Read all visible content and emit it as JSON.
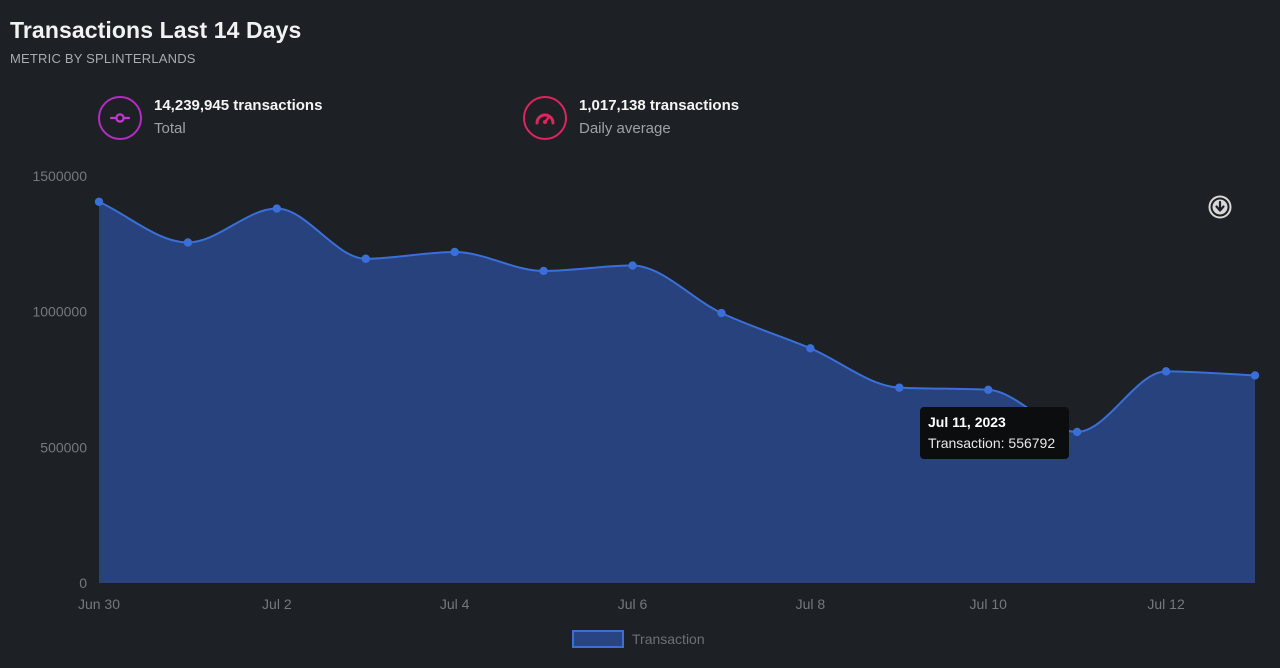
{
  "header": {
    "title": "Transactions Last 14 Days",
    "subtitle": "METRIC BY SPLINTERLANDS"
  },
  "stats": [
    {
      "value": "14,239,945 transactions",
      "label": "Total",
      "icon": "commit-icon",
      "color": "#b52cc4"
    },
    {
      "value": "1,017,138 transactions",
      "label": "Daily average",
      "icon": "speedometer-icon",
      "color": "#e0245e"
    }
  ],
  "tooltip": {
    "title": "Jul 11, 2023",
    "body": "Transaction: 556792"
  },
  "legend": {
    "label": "Transaction"
  },
  "colors": {
    "background": "#1d2024",
    "line": "#3a6fd8",
    "fill": "#294483"
  },
  "chart_data": {
    "type": "area",
    "x": [
      "Jun 30",
      "Jul 1",
      "Jul 2",
      "Jul 3",
      "Jul 4",
      "Jul 5",
      "Jul 6",
      "Jul 7",
      "Jul 8",
      "Jul 9",
      "Jul 10",
      "Jul 11",
      "Jul 12",
      "Jul 13"
    ],
    "x_tick_labels": [
      "Jun 30",
      "Jul 2",
      "Jul 4",
      "Jul 6",
      "Jul 8",
      "Jul 10",
      "Jul 12"
    ],
    "series": [
      {
        "name": "Transaction",
        "values": [
          1405000,
          1255000,
          1380000,
          1195000,
          1220000,
          1150000,
          1170000,
          995000,
          865000,
          720000,
          712000,
          556792,
          780000,
          765000
        ]
      }
    ],
    "ylim": [
      0,
      1500000
    ],
    "y_ticks": [
      0,
      500000,
      1000000,
      1500000
    ],
    "y_tick_labels": [
      "0",
      "500000",
      "1000000",
      "1500000"
    ],
    "grid": false,
    "legend_position": "bottom",
    "smooth": true
  }
}
